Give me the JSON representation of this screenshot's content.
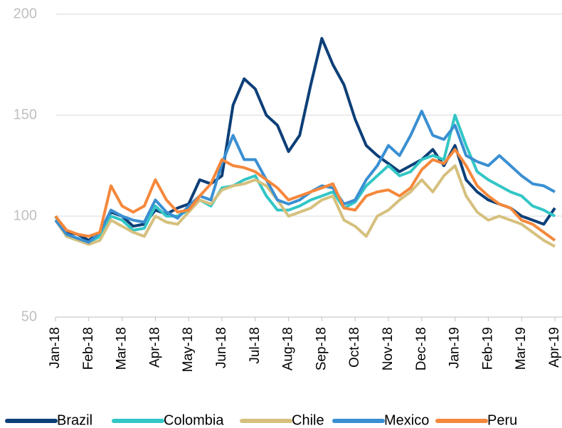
{
  "chart_data": {
    "type": "line",
    "categories": [
      "Jan-18",
      null,
      null,
      "Feb-18",
      null,
      null,
      "Mar-18",
      null,
      null,
      "Apr-18",
      null,
      null,
      "May-18",
      null,
      null,
      "Jun-18",
      null,
      null,
      "Jul-18",
      null,
      null,
      "Aug-18",
      null,
      null,
      "Sep-18",
      null,
      null,
      "Oct-18",
      null,
      null,
      "Nov-18",
      null,
      null,
      "Dec-18",
      null,
      null,
      "Jan-19",
      null,
      null,
      "Feb-19",
      null,
      null,
      "Mar-19",
      null,
      null,
      "Apr-19"
    ],
    "series": [
      {
        "name": "Brazil",
        "color": "#0d3f78",
        "values": [
          100,
          92,
          91,
          88,
          92,
          102,
          100,
          95,
          96,
          103,
          101,
          104,
          106,
          118,
          116,
          120,
          155,
          168,
          163,
          150,
          145,
          132,
          140,
          165,
          188,
          175,
          165,
          148,
          135,
          130,
          126,
          122,
          125,
          128,
          133,
          125,
          135,
          118,
          112,
          108,
          106,
          104,
          100,
          98,
          96,
          104
        ]
      },
      {
        "name": "Colombia",
        "color": "#33c6c6",
        "values": [
          100,
          90,
          88,
          87,
          90,
          100,
          98,
          93,
          94,
          105,
          100,
          100,
          103,
          108,
          105,
          114,
          115,
          118,
          120,
          110,
          103,
          103,
          105,
          108,
          110,
          112,
          104,
          107,
          115,
          120,
          125,
          120,
          122,
          128,
          130,
          128,
          150,
          135,
          122,
          118,
          115,
          112,
          110,
          105,
          103,
          100
        ]
      },
      {
        "name": "Chile",
        "color": "#d6c07e",
        "values": [
          98,
          90,
          88,
          86,
          88,
          98,
          95,
          92,
          90,
          100,
          97,
          96,
          102,
          108,
          106,
          113,
          115,
          116,
          118,
          115,
          108,
          100,
          102,
          104,
          108,
          110,
          98,
          95,
          90,
          100,
          103,
          108,
          112,
          118,
          112,
          120,
          125,
          110,
          102,
          98,
          100,
          98,
          96,
          92,
          88,
          85
        ]
      },
      {
        "name": "Mexico",
        "color": "#3a8fd2",
        "values": [
          98,
          91,
          89,
          87,
          92,
          103,
          100,
          98,
          97,
          108,
          102,
          99,
          105,
          110,
          108,
          126,
          140,
          128,
          128,
          118,
          108,
          106,
          108,
          112,
          115,
          114,
          106,
          108,
          118,
          125,
          135,
          130,
          140,
          152,
          140,
          138,
          145,
          130,
          127,
          125,
          130,
          125,
          120,
          116,
          115,
          112
        ]
      },
      {
        "name": "Peru",
        "color": "#f5883c",
        "values": [
          100,
          93,
          91,
          90,
          92,
          115,
          105,
          102,
          105,
          118,
          108,
          102,
          103,
          110,
          116,
          128,
          125,
          124,
          122,
          118,
          114,
          108,
          110,
          112,
          114,
          116,
          104,
          103,
          110,
          112,
          113,
          110,
          114,
          123,
          128,
          126,
          133,
          125,
          115,
          110,
          106,
          104,
          98,
          96,
          92,
          88
        ]
      }
    ],
    "ylim": [
      50,
      200
    ],
    "yticks": [
      50,
      100,
      150,
      200
    ],
    "grid": true,
    "legend": "bottom"
  }
}
